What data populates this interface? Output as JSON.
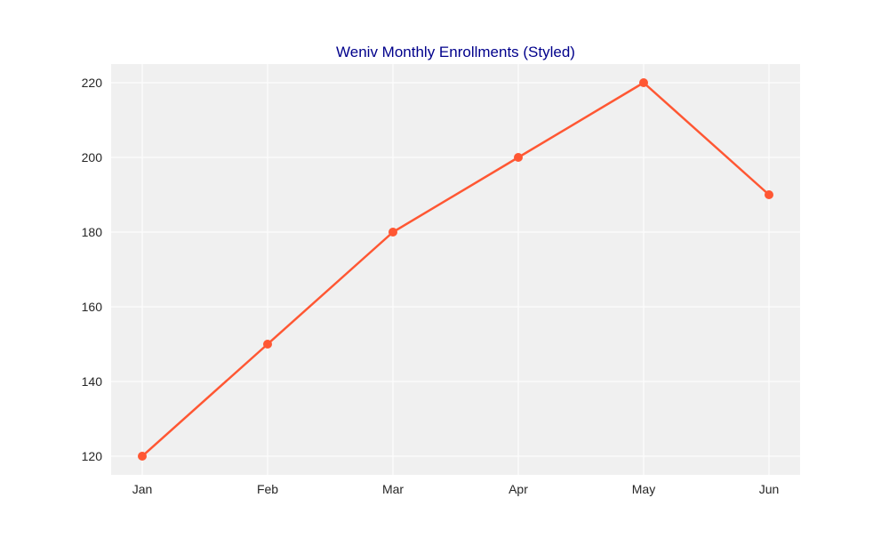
{
  "chart_data": {
    "type": "line",
    "title": "Weniv Monthly Enrollments (Styled)",
    "xlabel": "",
    "ylabel": "",
    "categories": [
      "Jan",
      "Feb",
      "Mar",
      "Apr",
      "May",
      "Jun"
    ],
    "series": [
      {
        "values": [
          120,
          150,
          180,
          200,
          220,
          190
        ],
        "color": "#ff5733",
        "marker": "circle"
      }
    ],
    "yticks": [
      120,
      140,
      160,
      180,
      200,
      220
    ],
    "ylim": [
      115,
      225
    ],
    "grid": true,
    "legend": "none"
  },
  "colors": {
    "plot_background": "#f0f0f0",
    "grid": "#ffffff",
    "title": "#00008b",
    "tick_text": "#262626",
    "line": "#ff5733"
  }
}
